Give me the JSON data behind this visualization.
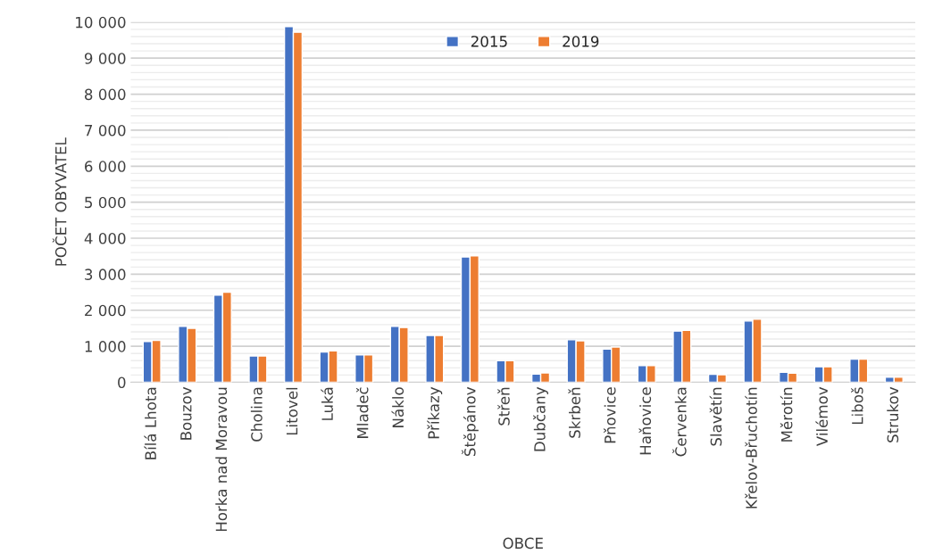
{
  "chart_data": {
    "type": "bar",
    "xlabel": "OBCE",
    "ylabel": "POČET OBYVATEL",
    "categories": [
      "Bílá Lhota",
      "Bouzov",
      "Horka nad Moravou",
      "Cholina",
      "Litovel",
      "Luká",
      "Mladeč",
      "Náklo",
      "Příkazy",
      "Štěpánov",
      "Střeň",
      "Dubčany",
      "Skrbeň",
      "Pňovice",
      "Haňovice",
      "Červenka",
      "Slavětín",
      "Křelov-Břuchotín",
      "Měrotín",
      "Vilémov",
      "Liboš",
      "Strukov"
    ],
    "series": [
      {
        "name": "2015",
        "color": "#4472c4",
        "values": [
          1130,
          1550,
          2420,
          730,
          9880,
          840,
          760,
          1550,
          1300,
          3480,
          600,
          230,
          1180,
          920,
          460,
          1420,
          220,
          1700,
          280,
          430,
          640,
          140
        ]
      },
      {
        "name": "2019",
        "color": "#ed7d31",
        "values": [
          1160,
          1500,
          2500,
          730,
          9720,
          870,
          760,
          1520,
          1300,
          3510,
          600,
          260,
          1150,
          980,
          460,
          1440,
          210,
          1750,
          250,
          430,
          640,
          140
        ]
      }
    ],
    "ylim": [
      0,
      10000
    ],
    "yticks": [
      0,
      {
        "value": 1000,
        "label": "1 000"
      },
      {
        "value": 2000,
        "label": "2 000"
      },
      {
        "value": 3000,
        "label": "3 000"
      },
      {
        "value": 4000,
        "label": "4 000"
      },
      {
        "value": 5000,
        "label": "5 000"
      },
      {
        "value": 6000,
        "label": "6 000"
      },
      {
        "value": 7000,
        "label": "7 000"
      },
      {
        "value": 8000,
        "label": "8 000"
      },
      {
        "value": 9000,
        "label": "9 000"
      },
      {
        "value": 10000,
        "label": "10 000"
      }
    ],
    "grid": "y",
    "legend": "top"
  }
}
